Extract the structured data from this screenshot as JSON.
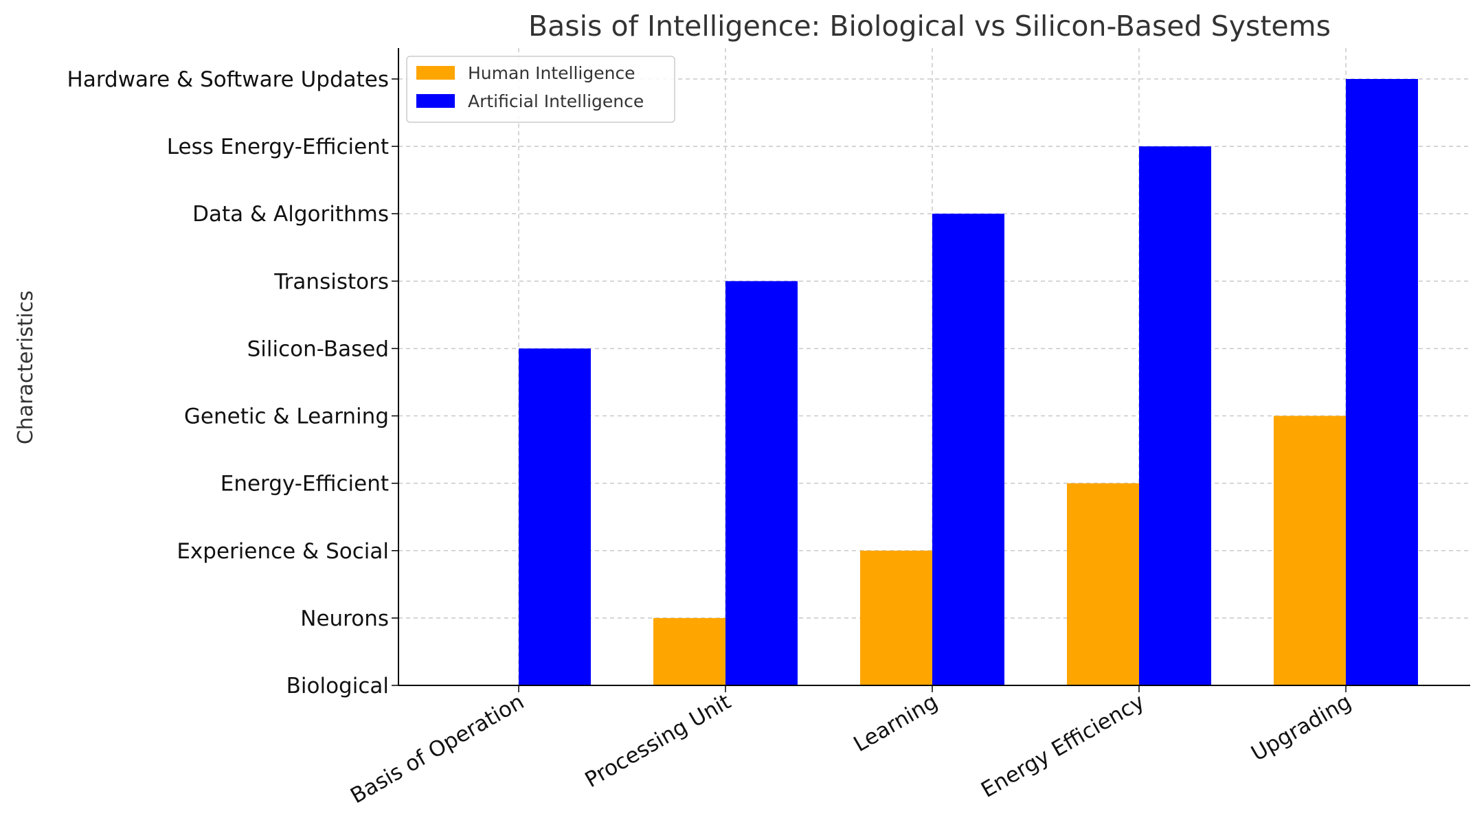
{
  "chart_data": {
    "type": "bar",
    "title": "Basis of Intelligence: Biological vs Silicon-Based Systems",
    "xlabel": "",
    "ylabel": "Characteristics",
    "categories": [
      "Basis of Operation",
      "Processing Unit",
      "Learning",
      "Energy Efficiency",
      "Upgrading"
    ],
    "y_tick_labels": [
      "Biological",
      "Neurons",
      "Experience & Social",
      "Energy-Efficient",
      "Genetic & Learning",
      "Silicon-Based",
      "Transistors",
      "Data & Algorithms",
      "Less Energy-Efficient",
      "Hardware & Software Updates"
    ],
    "ylim": [
      0,
      9
    ],
    "series": [
      {
        "name": "Human Intelligence",
        "values": [
          0,
          1,
          2,
          3,
          4
        ],
        "color": "#FFA500"
      },
      {
        "name": "Artificial Intelligence",
        "values": [
          5,
          6,
          7,
          8,
          9
        ],
        "color": "#0000FF"
      }
    ],
    "grid": true,
    "legend_position": "upper-left"
  }
}
